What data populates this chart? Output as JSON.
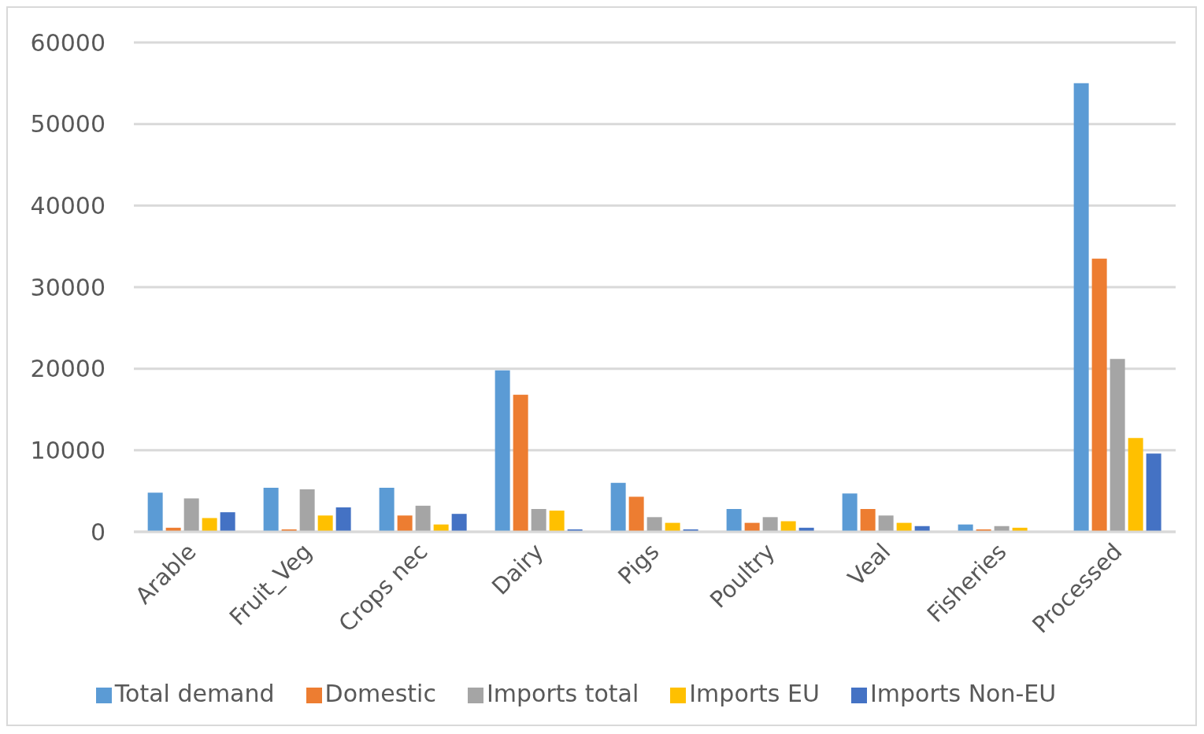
{
  "chart_data": {
    "type": "bar",
    "categories": [
      "Arable",
      "Fruit_Veg",
      "Crops nec",
      "Dairy",
      "Pigs",
      "Poultry",
      "Veal",
      "Fisheries",
      "Processed"
    ],
    "series": [
      {
        "name": "Total demand",
        "color": "#5b9bd5",
        "values": [
          4800,
          5400,
          5400,
          19800,
          6000,
          2800,
          4700,
          900,
          55000
        ]
      },
      {
        "name": "Domestic",
        "color": "#ed7d31",
        "values": [
          500,
          300,
          2000,
          16800,
          4300,
          1100,
          2800,
          300,
          33500
        ]
      },
      {
        "name": "Imports total",
        "color": "#a5a5a5",
        "values": [
          4100,
          5200,
          3200,
          2800,
          1800,
          1800,
          2000,
          700,
          21200
        ]
      },
      {
        "name": "Imports EU",
        "color": "#ffc000",
        "values": [
          1700,
          2000,
          900,
          2600,
          1100,
          1300,
          1100,
          500,
          11500
        ]
      },
      {
        "name": "Imports Non-EU",
        "color": "#4472c4",
        "values": [
          2400,
          3000,
          2200,
          300,
          300,
          500,
          700,
          null,
          9600
        ]
      }
    ],
    "ylim": [
      0,
      60000
    ],
    "yticks": [
      0,
      10000,
      20000,
      30000,
      40000,
      50000,
      60000
    ],
    "grid": "y",
    "legend": "bottom"
  }
}
